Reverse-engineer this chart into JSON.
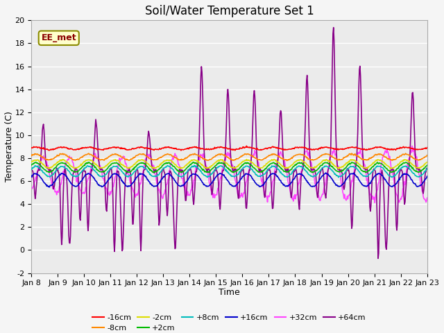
{
  "title": "Soil/Water Temperature Set 1",
  "xlabel": "Time",
  "ylabel": "Temperature (C)",
  "ylim": [
    -2,
    20
  ],
  "n_days": 15,
  "x_tick_labels": [
    "Jan 8",
    "Jan 9",
    "Jan 10",
    "Jan 11",
    "Jan 12",
    "Jan 13",
    "Jan 14",
    "Jan 15",
    "Jan 16",
    "Jan 17",
    "Jan 18",
    "Jan 19",
    "Jan 20",
    "Jan 21",
    "Jan 22",
    "Jan 23"
  ],
  "annotation": "EE_met",
  "series_smooth": [
    {
      "name": "-16cm",
      "color": "#ff0000",
      "base": 8.85,
      "amp": 0.1
    },
    {
      "name": "-8cm",
      "color": "#ff8800",
      "base": 8.1,
      "amp": 0.25
    },
    {
      "name": "-2cm",
      "color": "#dddd00",
      "base": 7.5,
      "amp": 0.35
    },
    {
      "name": "+2cm",
      "color": "#00bb00",
      "base": 7.2,
      "amp": 0.4
    },
    {
      "name": "+8cm",
      "color": "#00bbbb",
      "base": 6.85,
      "amp": 0.45
    },
    {
      "name": "+16cm",
      "color": "#0000cc",
      "base": 6.1,
      "amp": 0.55
    }
  ],
  "color_32cm": "#ff44ff",
  "color_64cm": "#880088",
  "background_color": "#ebebeb",
  "plot_bg": "#f5f5f5",
  "grid_color": "#ffffff",
  "title_fontsize": 12,
  "label_fontsize": 9,
  "tick_fontsize": 8
}
